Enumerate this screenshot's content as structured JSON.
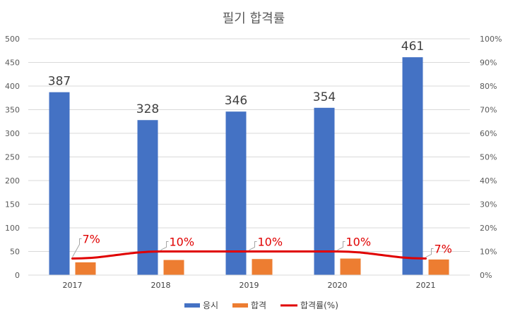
{
  "chart_data": {
    "type": "bar",
    "title": "필기 합격률",
    "categories": [
      "2017",
      "2018",
      "2019",
      "2020",
      "2021"
    ],
    "series": [
      {
        "name": "응시",
        "type": "bar",
        "axis": "left",
        "color": "#4472C4",
        "values": [
          387,
          328,
          346,
          354,
          461
        ],
        "labels": [
          "387",
          "328",
          "346",
          "354",
          "461"
        ]
      },
      {
        "name": "합격",
        "type": "bar",
        "axis": "left",
        "color": "#ED7D31",
        "values": [
          27,
          32,
          34,
          35,
          33
        ]
      },
      {
        "name": "합격률(%)",
        "type": "line",
        "axis": "right",
        "color": "#E00000",
        "values": [
          0.07,
          0.1,
          0.1,
          0.1,
          0.07
        ],
        "labels": [
          "7%",
          "10%",
          "10%",
          "10%",
          "7%"
        ]
      }
    ],
    "ylim": [
      0,
      500
    ],
    "yticks": [
      "0",
      "50",
      "100",
      "150",
      "200",
      "250",
      "300",
      "350",
      "400",
      "450",
      "500"
    ],
    "y2lim": [
      0,
      1
    ],
    "y2ticks": [
      "0%",
      "10%",
      "20%",
      "30%",
      "40%",
      "50%",
      "60%",
      "70%",
      "80%",
      "90%",
      "100%"
    ],
    "grid": true,
    "legend": "bottom"
  }
}
